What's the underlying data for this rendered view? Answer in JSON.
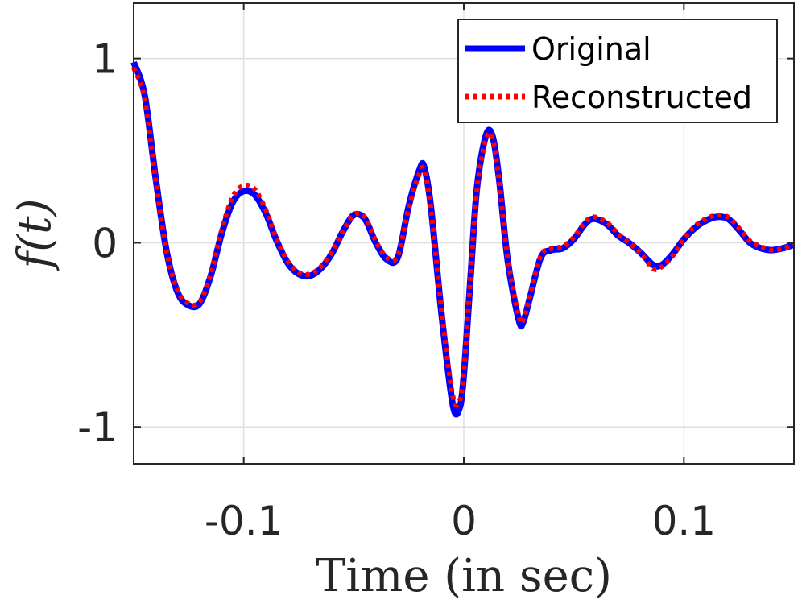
{
  "chart_data": {
    "type": "line",
    "xlabel": "Time (in sec)",
    "ylabel": "f(t)",
    "xlim": [
      -0.15,
      0.15
    ],
    "ylim": [
      -1.2,
      1.3
    ],
    "xticks": [
      -0.1,
      0,
      0.1
    ],
    "xtick_labels": [
      "-0.1",
      "0",
      "0.1"
    ],
    "yticks": [
      -1,
      0,
      1
    ],
    "ytick_labels": [
      "-1",
      "0",
      "1"
    ],
    "grid": true,
    "legend_position": "top-right",
    "series": [
      {
        "name": "Original",
        "color": "#0000ff",
        "style": "solid",
        "x": [
          -0.15,
          -0.145,
          -0.14,
          -0.135,
          -0.13,
          -0.125,
          -0.12,
          -0.115,
          -0.11,
          -0.105,
          -0.1,
          -0.095,
          -0.09,
          -0.085,
          -0.08,
          -0.075,
          -0.07,
          -0.065,
          -0.06,
          -0.055,
          -0.05,
          -0.045,
          -0.04,
          -0.035,
          -0.03,
          -0.025,
          -0.02,
          -0.018,
          -0.015,
          -0.01,
          -0.005,
          -0.002,
          0,
          0.003,
          0.006,
          0.01,
          0.013,
          0.016,
          0.02,
          0.025,
          0.027,
          0.03,
          0.035,
          0.04,
          0.045,
          0.05,
          0.055,
          0.059,
          0.065,
          0.07,
          0.075,
          0.08,
          0.086,
          0.09,
          0.095,
          0.1,
          0.105,
          0.11,
          0.115,
          0.12,
          0.125,
          0.13,
          0.135,
          0.14,
          0.145,
          0.15
        ],
        "y": [
          0.98,
          0.8,
          0.35,
          -0.05,
          -0.27,
          -0.34,
          -0.33,
          -0.18,
          0.05,
          0.22,
          0.28,
          0.26,
          0.16,
          0.01,
          -0.11,
          -0.17,
          -0.18,
          -0.14,
          -0.06,
          0.06,
          0.15,
          0.13,
          0.0,
          -0.09,
          -0.08,
          0.2,
          0.4,
          0.41,
          0.2,
          -0.4,
          -0.88,
          -0.9,
          -0.72,
          -0.2,
          0.3,
          0.58,
          0.58,
          0.35,
          -0.1,
          -0.42,
          -0.43,
          -0.3,
          -0.08,
          -0.04,
          -0.03,
          0.02,
          0.1,
          0.13,
          0.1,
          0.04,
          0.0,
          -0.05,
          -0.12,
          -0.12,
          -0.06,
          0.02,
          0.08,
          0.12,
          0.14,
          0.13,
          0.07,
          0.0,
          -0.03,
          -0.04,
          -0.03,
          -0.01
        ]
      },
      {
        "name": "Reconstructed",
        "color": "#ff0000",
        "style": "dotted",
        "x": [
          -0.15,
          -0.145,
          -0.14,
          -0.135,
          -0.13,
          -0.125,
          -0.12,
          -0.115,
          -0.11,
          -0.105,
          -0.1,
          -0.095,
          -0.09,
          -0.085,
          -0.08,
          -0.075,
          -0.07,
          -0.065,
          -0.06,
          -0.055,
          -0.05,
          -0.045,
          -0.04,
          -0.035,
          -0.03,
          -0.025,
          -0.02,
          -0.018,
          -0.015,
          -0.01,
          -0.005,
          -0.002,
          0,
          0.003,
          0.006,
          0.01,
          0.013,
          0.016,
          0.02,
          0.025,
          0.027,
          0.03,
          0.035,
          0.04,
          0.045,
          0.05,
          0.055,
          0.059,
          0.065,
          0.07,
          0.075,
          0.08,
          0.086,
          0.09,
          0.095,
          0.1,
          0.105,
          0.11,
          0.115,
          0.12,
          0.125,
          0.13,
          0.135,
          0.14,
          0.145,
          0.15
        ],
        "y": [
          0.95,
          0.78,
          0.34,
          -0.05,
          -0.26,
          -0.33,
          -0.32,
          -0.17,
          0.07,
          0.25,
          0.31,
          0.29,
          0.18,
          0.02,
          -0.1,
          -0.16,
          -0.17,
          -0.13,
          -0.05,
          0.06,
          0.15,
          0.14,
          0.01,
          -0.08,
          -0.07,
          0.19,
          0.38,
          0.39,
          0.19,
          -0.38,
          -0.83,
          -0.86,
          -0.7,
          -0.19,
          0.29,
          0.56,
          0.57,
          0.34,
          -0.09,
          -0.4,
          -0.42,
          -0.29,
          -0.07,
          -0.03,
          -0.02,
          0.03,
          0.11,
          0.14,
          0.11,
          0.05,
          0.0,
          -0.05,
          -0.14,
          -0.13,
          -0.07,
          0.02,
          0.09,
          0.13,
          0.15,
          0.14,
          0.08,
          0.01,
          -0.02,
          -0.04,
          -0.03,
          -0.01
        ]
      }
    ]
  }
}
